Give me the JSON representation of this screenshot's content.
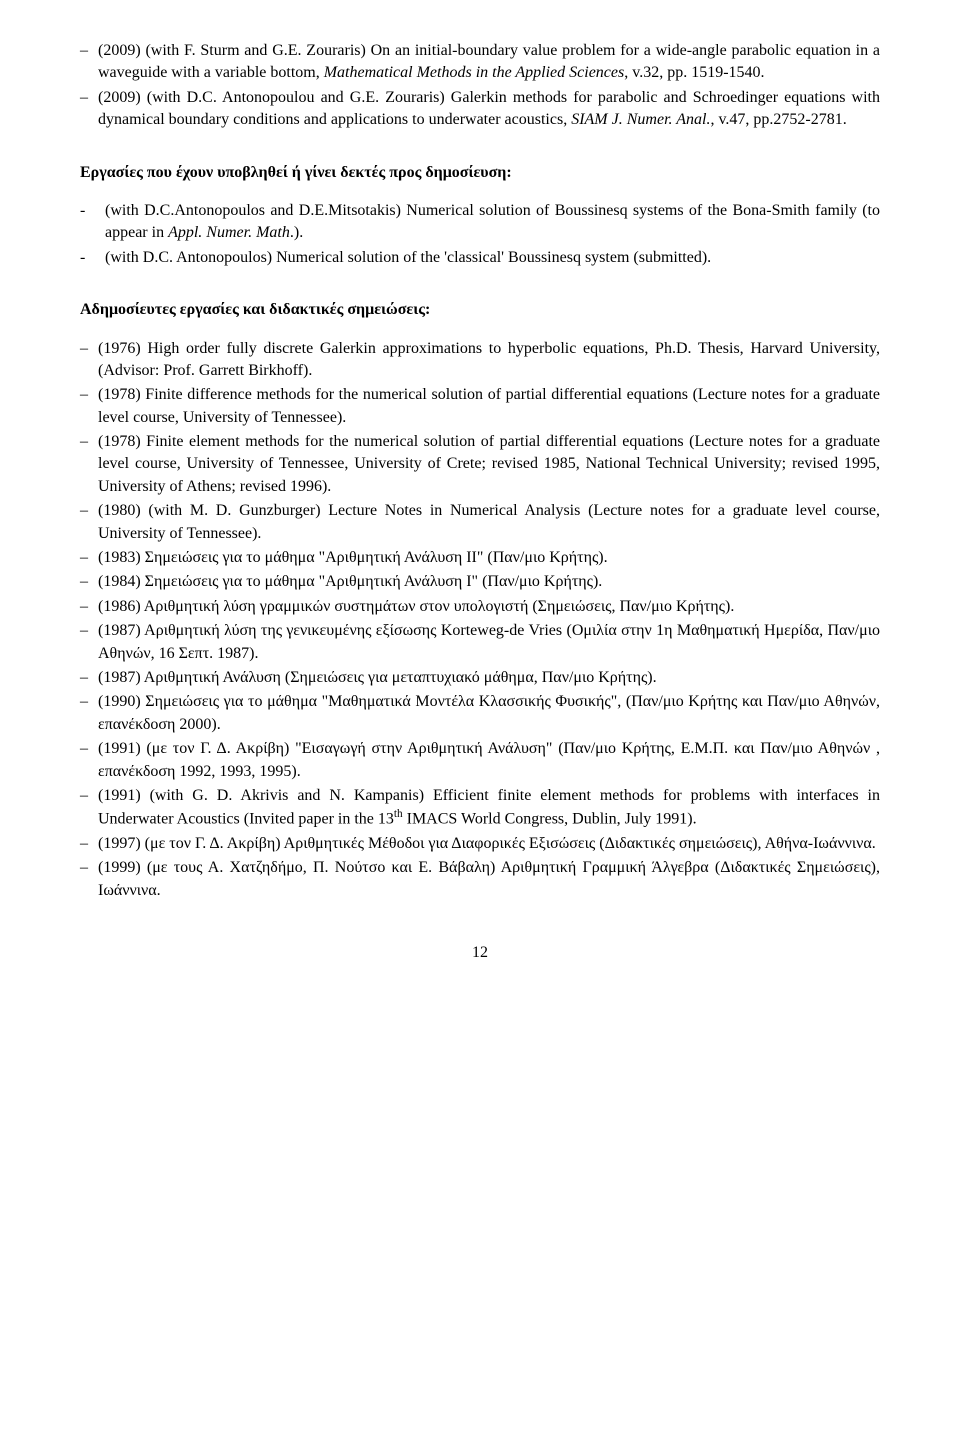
{
  "topItems": [
    {
      "text": "(2009) (with F. Sturm and G.E. Zouraris) On an initial-boundary value problem for a wide-angle parabolic equation in a waveguide with a variable bottom, <span class=\"italic\">Mathematical Methods in the Applied Sciences</span>, v.32, pp. 1519-1540."
    },
    {
      "text": "(2009) (with D.C. Antonopoulou and G.E. Zouraris) Galerkin methods for parabolic and Schroedinger equations with dynamical boundary conditions and applications to underwater acoustics, <span class=\"italic\">SIAM J. Numer. Anal.</span>, v.47, pp.2752-2781."
    }
  ],
  "section1Heading": "Εργασίες που έχουν υποβληθεί ή γίνει δεκτές προς δημοσίευση:",
  "midItems": [
    {
      "text": " (with D.C.Antonopoulos and D.E.Mitsotakis) Numerical solution of Boussinesq systems of the Bona-Smith family (to appear in <span class=\"italic\">Appl. Numer. Math</span>.)."
    },
    {
      "text": "(with  D.C. Antonopoulos) Numerical solution of the 'classical' Boussinesq system (submitted)."
    }
  ],
  "section2Heading": "Αδημοσίευτες εργασίες και διδακτικές σημειώσεις:",
  "bottomItems": [
    {
      "text": "(1976) High order fully discrete Galerkin approximations to hyperbolic equations, Ph.D. Thesis, Harvard University, (Advisor: Prof. Garrett Birkhoff)."
    },
    {
      "text": "(1978) Finite difference methods for the numerical solution of partial differential equations (Lecture notes for a graduate level course, University of Tennessee)."
    },
    {
      "text": "(1978) Finite element methods for the numerical solution of partial differential equations (Lecture notes for a graduate level course, University of Tennessee, University of Crete; revised 1985, National Technical University; revised 1995, University of Athens; revised 1996)."
    },
    {
      "text": "(1980) (with M. D. Gunzburger) Lecture Notes in Numerical Analysis (Lecture notes for a graduate level course, University of Tennessee)."
    },
    {
      "text": "(1983) Σημειώσεις για το μάθημα \"Αριθμητική Ανάλυση ΙΙ\" (Παν/μιο Κρήτης)."
    },
    {
      "text": "(1984) Σημειώσεις για το μάθημα \"Αριθμητική Ανάλυση Ι\" (Παν/μιο Κρήτης)."
    },
    {
      "text": "(1986) Αριθμητική λύση γραμμικών συστημάτων στον υπολογιστή (Σημειώσεις, Παν/μιο Κρήτης)."
    },
    {
      "text": "(1987) Αριθμητική λύση της γενικευμένης εξίσωσης Korteweg-de Vries (Ομιλία στην 1η Μαθηματική Ημερίδα, Παν/μιο Αθηνών, 16 Σεπτ. 1987)."
    },
    {
      "text": "(1987) Αριθμητική Ανάλυση (Σημειώσεις για μεταπτυχιακό μάθημα, Παν/μιο Κρήτης)."
    },
    {
      "text": "(1990) Σημειώσεις για το μάθημα \"Μαθηματικά Μοντέλα Κλασσικής Φυσικής\", (Παν/μιο Κρήτης και Παν/μιο Αθηνών, επανέκδοση 2000)."
    },
    {
      "text": "(1991) (με τον Γ. Δ. Ακρίβη) \"Εισαγωγή στην Αριθμητική Ανάλυση\" (Παν/μιο Κρήτης, Ε.Μ.Π. και Παν/μιο Αθηνών , επανέκδοση 1992, 1993, 1995)."
    },
    {
      "text": "(1991) (with G. D. Akrivis and N. Kampanis) Efficient finite element methods for problems with interfaces in Underwater Acoustics (Invited paper in the 13<sup>th</sup> IMACS World Congress, Dublin, July 1991)."
    },
    {
      "text": "(1997) (με τον Γ. Δ. Ακρίβη) Αριθμητικές Μέθοδοι για Διαφορικές Εξισώσεις (Διδακτικές σημειώσεις), Αθήνα-Ιωάννινα."
    },
    {
      "text": "(1999) (με τους Α. Χατζηδήμο, Π. Νούτσο και Ε. Βάβαλη) Αριθμητική Γραμμική Άλγεβρα (Διδακτικές Σημειώσεις), Ιωάννινα."
    }
  ],
  "pageNumber": "12"
}
